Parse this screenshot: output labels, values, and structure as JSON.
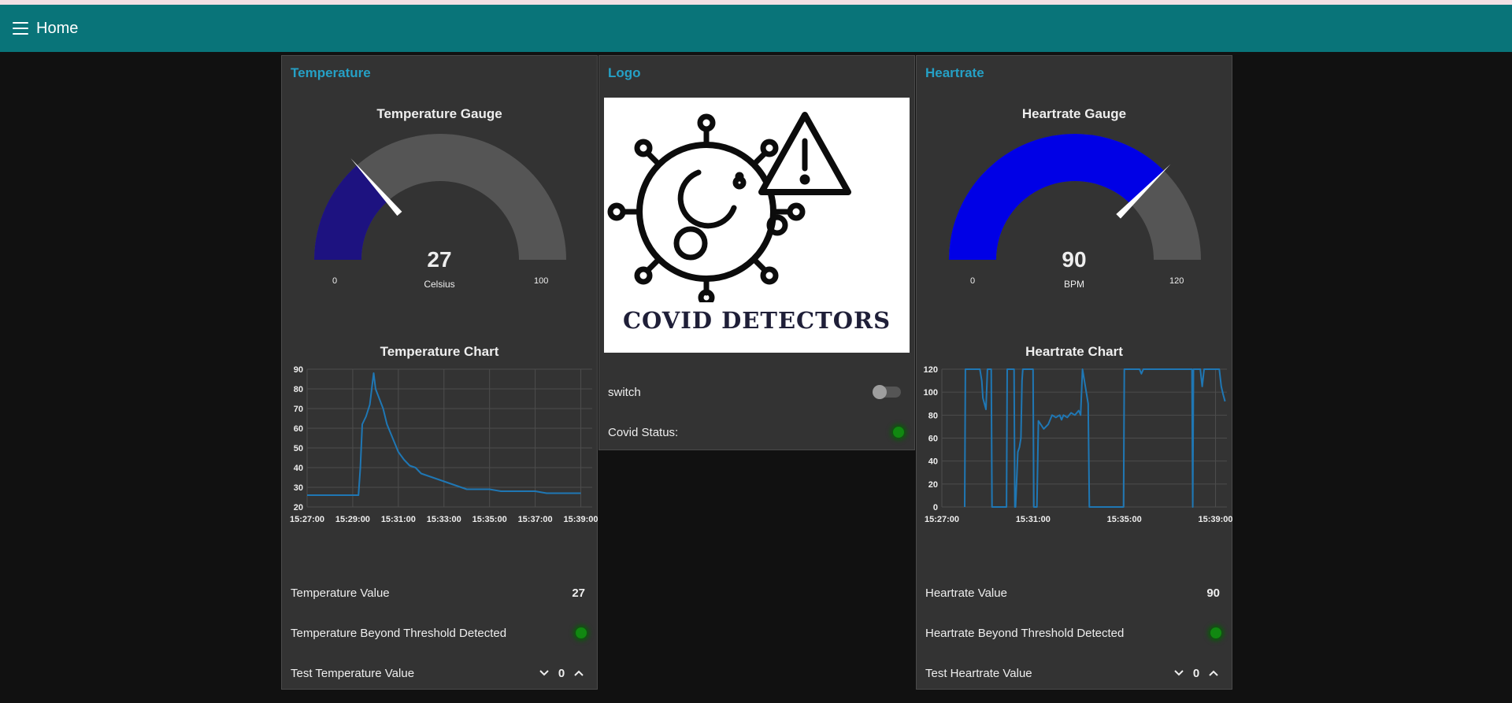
{
  "toolbar": {
    "title": "Home",
    "menu_icon": "hamburger-menu-icon"
  },
  "colors": {
    "toolbar": "#097479",
    "group_title": "#25a0c5",
    "temperature_gauge_fill": "#1d1280",
    "heartrate_gauge_fill": "#0000e6",
    "gauge_track": "#555555",
    "chart_line": "#1f77b4",
    "led_on": "#118811"
  },
  "temperature": {
    "group_title": "Temperature",
    "gauge": {
      "title": "Temperature Gauge",
      "value": 27,
      "value_text": "27",
      "units": "Celsius",
      "min": 0,
      "min_text": "0",
      "max": 100,
      "max_text": "100"
    },
    "chart_title": "Temperature Chart",
    "value_label": "Temperature Value",
    "value_text": "27",
    "threshold_label": "Temperature Beyond Threshold Detected",
    "test_label": "Test Temperature Value",
    "test_value": "0"
  },
  "logo": {
    "group_title": "Logo",
    "image_text": "COVID DETECTORS",
    "switch_label": "switch",
    "switch_state": "off",
    "status_label": "Covid Status:"
  },
  "heartrate": {
    "group_title": "Heartrate",
    "gauge": {
      "title": "Heartrate Gauge",
      "value": 90,
      "value_text": "90",
      "units": "BPM",
      "min": 0,
      "min_text": "0",
      "max": 120,
      "max_text": "120"
    },
    "chart_title": "Heartrate Chart",
    "value_label": "Heartrate Value",
    "value_text": "90",
    "threshold_label": "Heartrate Beyond Threshold Detected",
    "test_label": "Test Heartrate Value",
    "test_value": "0"
  },
  "chart_data": [
    {
      "type": "line",
      "title": "Temperature Chart",
      "xlabel": "",
      "ylabel": "",
      "ylim": [
        20,
        90
      ],
      "xlim": [
        "15:27:00",
        "15:39:30"
      ],
      "x_ticks": [
        "15:27:00",
        "15:29:00",
        "15:31:00",
        "15:33:00",
        "15:35:00",
        "15:37:00",
        "15:39:00"
      ],
      "y_ticks": [
        20,
        30,
        40,
        50,
        60,
        70,
        80,
        90
      ],
      "grid": true,
      "series": [
        {
          "x": [
            "15:27:00",
            "15:29:15",
            "15:29:20",
            "15:29:25",
            "15:29:35",
            "15:29:45",
            "15:29:55",
            "15:30:00",
            "15:30:10",
            "15:30:20",
            "15:30:30",
            "15:30:45",
            "15:31:00",
            "15:31:15",
            "15:31:30",
            "15:31:45",
            "15:32:00",
            "15:32:30",
            "15:33:00",
            "15:33:30",
            "15:34:00",
            "15:34:30",
            "15:35:00",
            "15:35:30",
            "15:36:00",
            "15:36:30",
            "15:37:00",
            "15:37:30",
            "15:38:00",
            "15:39:00"
          ],
          "y": [
            26,
            26,
            40,
            62,
            66,
            72,
            88,
            80,
            75,
            70,
            62,
            55,
            48,
            44,
            41,
            40,
            37,
            35,
            33,
            31,
            29,
            29,
            29,
            28,
            28,
            28,
            28,
            27,
            27,
            27
          ]
        }
      ]
    },
    {
      "type": "line",
      "title": "Heartrate Chart",
      "xlabel": "",
      "ylabel": "",
      "ylim": [
        0,
        120
      ],
      "xlim": [
        "15:27:00",
        "15:39:30"
      ],
      "x_ticks": [
        "15:27:00",
        "15:31:00",
        "15:35:00",
        "15:39:00"
      ],
      "y_ticks": [
        0,
        20,
        40,
        60,
        80,
        100,
        120
      ],
      "grid": true,
      "series": [
        {
          "x": [
            "15:28:00",
            "15:28:02",
            "15:28:40",
            "15:28:45",
            "15:28:48",
            "15:28:52",
            "15:28:56",
            "15:29:00",
            "15:29:10",
            "15:29:12",
            "15:29:40",
            "15:29:50",
            "15:29:52",
            "15:29:56",
            "15:30:10",
            "15:30:12",
            "15:30:14",
            "15:30:20",
            "15:30:24",
            "15:30:28",
            "15:30:31",
            "15:30:33",
            "15:31:00",
            "15:31:02",
            "15:31:10",
            "15:31:14",
            "15:31:20",
            "15:31:28",
            "15:31:40",
            "15:31:50",
            "15:32:00",
            "15:32:10",
            "15:32:15",
            "15:32:20",
            "15:32:30",
            "15:32:40",
            "15:32:50",
            "15:33:00",
            "15:33:05",
            "15:33:10",
            "15:33:15",
            "15:33:20",
            "15:33:25",
            "15:33:28",
            "15:34:58",
            "15:35:00",
            "15:35:02",
            "15:35:40",
            "15:35:45",
            "15:35:50",
            "15:36:00",
            "15:36:30",
            "15:37:00",
            "15:37:30",
            "15:37:58",
            "15:38:00",
            "15:38:02",
            "15:38:04",
            "15:38:10",
            "15:38:12",
            "15:38:20",
            "15:38:25",
            "15:38:30",
            "15:38:35",
            "15:38:40",
            "15:39:00",
            "15:39:10",
            "15:39:15",
            "15:39:20",
            "15:39:25"
          ],
          "y": [
            0,
            120,
            120,
            110,
            95,
            90,
            85,
            120,
            120,
            0,
            0,
            0,
            120,
            120,
            120,
            0,
            0,
            48,
            52,
            60,
            110,
            120,
            120,
            0,
            0,
            75,
            72,
            68,
            72,
            80,
            78,
            80,
            76,
            80,
            78,
            82,
            80,
            84,
            80,
            120,
            110,
            100,
            90,
            0,
            0,
            120,
            120,
            120,
            116,
            120,
            120,
            120,
            120,
            120,
            120,
            0,
            120,
            120,
            120,
            120,
            120,
            105,
            120,
            120,
            120,
            120,
            120,
            105,
            98,
            92
          ]
        }
      ]
    }
  ]
}
